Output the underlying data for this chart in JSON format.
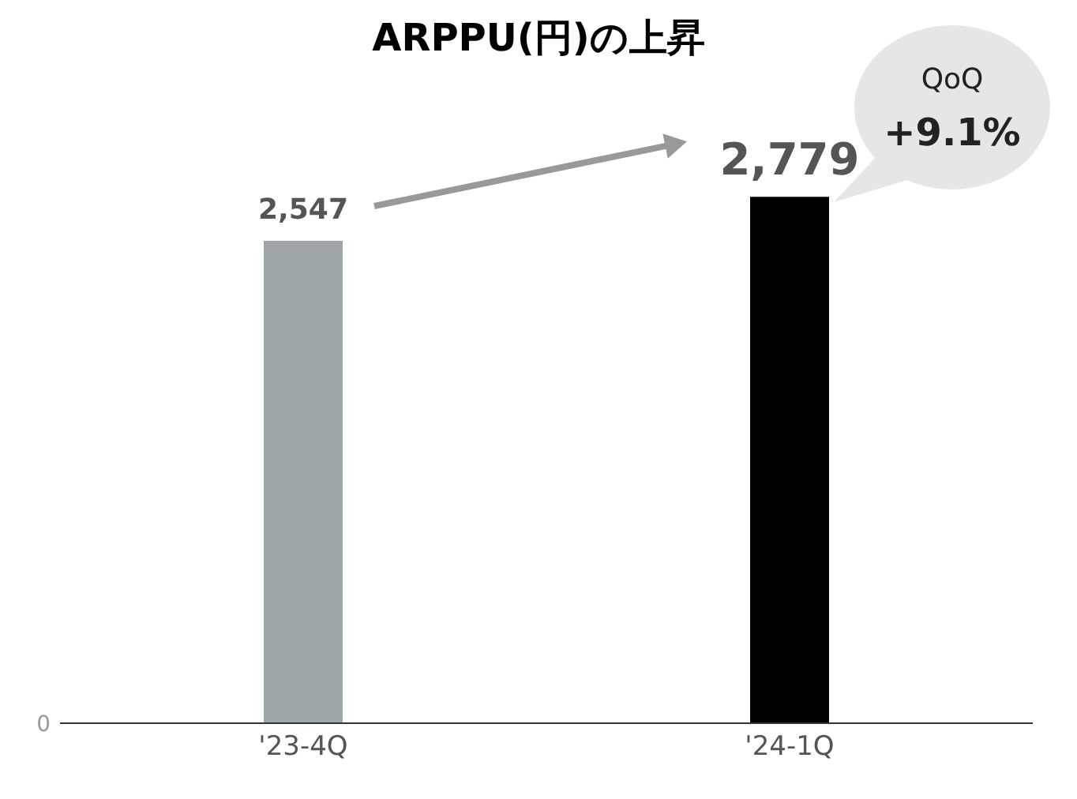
{
  "chart_data": {
    "type": "bar",
    "title": "ARPPU(円)の上昇",
    "categories": [
      "'23-4Q",
      "'24-1Q"
    ],
    "values": [
      2547,
      2779
    ],
    "colors": [
      "#9ea6a9",
      "#000000"
    ],
    "value_labels": [
      "2,547",
      "2,779"
    ],
    "annotations": [
      "QoQ",
      "+9.1%",
      "0"
    ]
  }
}
